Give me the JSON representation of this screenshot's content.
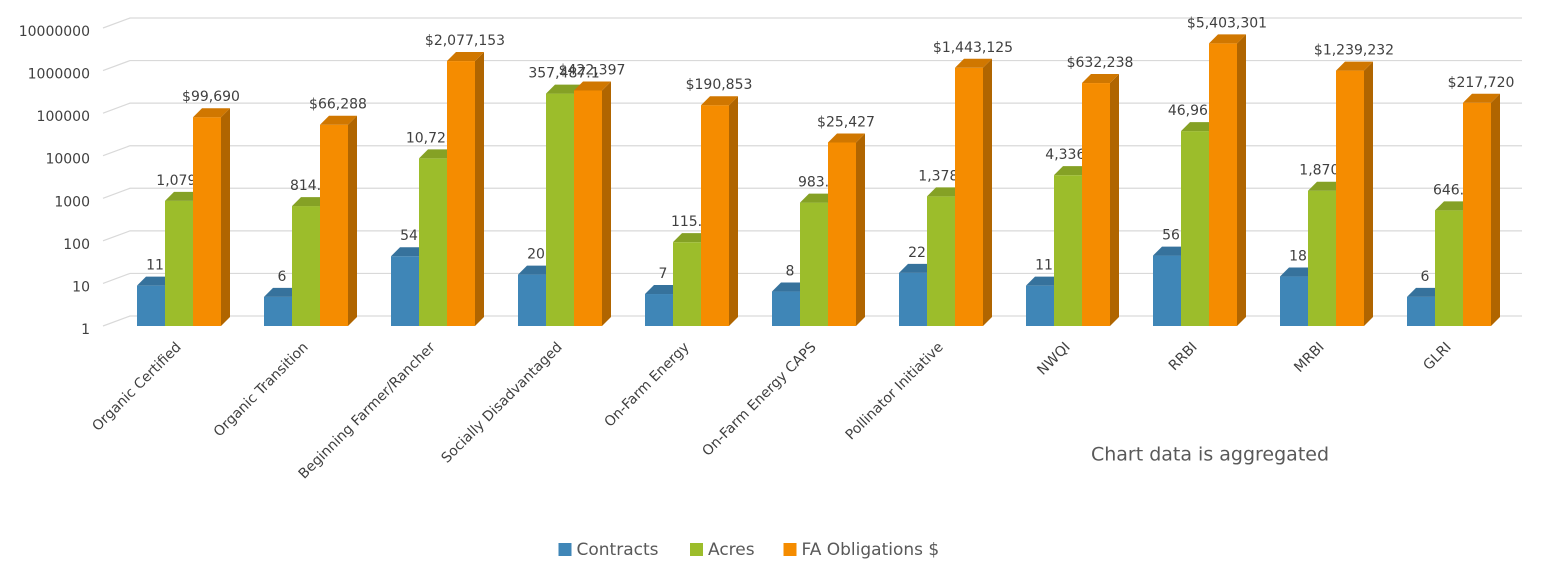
{
  "chart_data": {
    "type": "bar",
    "categories": [
      "Organic Certified",
      "Organic Transition",
      "Beginning Farmer/Rancher",
      "Socially Disadvantaged",
      "On-Farm Energy",
      "On-Farm Energy CAPS",
      "Pollinator Initiative",
      "NWQI",
      "RRBI",
      "MRBI",
      "GLRI"
    ],
    "series": [
      {
        "name": "Contracts",
        "color": "#3f86b7",
        "values": [
          11,
          6,
          54,
          20,
          7,
          8,
          22,
          11,
          56,
          18,
          6
        ]
      },
      {
        "name": "Acres",
        "color": "#9cbd2b",
        "values": [
          1079.4,
          814.7,
          10723.5,
          357487.1,
          115.6,
          983.3,
          1378.2,
          4336.3,
          46963.4,
          1870.9,
          646.9
        ],
        "value_labels": [
          "1,079.4",
          "814.7",
          "10,723.5",
          "357,487.1",
          "115.6",
          "983.3",
          "1,378.2",
          "4,336.3",
          "46,963.4",
          "1,870.9",
          "646.9"
        ]
      },
      {
        "name": "FA Obligations $",
        "color": "#f58c00",
        "values": [
          99690,
          66288,
          2077153,
          422397,
          190853,
          25427,
          1443125,
          632238,
          5403301,
          1239232,
          217720
        ],
        "value_labels": [
          "$99,690",
          "$66,288",
          "$2,077,153",
          "$422,397",
          "$190,853",
          "$25,427",
          "$1,443,125",
          "$632,238",
          "$5,403,301",
          "$1,239,232",
          "$217,720"
        ]
      }
    ],
    "ylim": [
      1,
      10000000
    ],
    "yticks": [
      1,
      10,
      100,
      1000,
      10000,
      100000,
      1000000,
      10000000
    ],
    "log_scale": true,
    "grid": true,
    "legend": "bottom",
    "annotation": "Chart data is aggregated"
  }
}
